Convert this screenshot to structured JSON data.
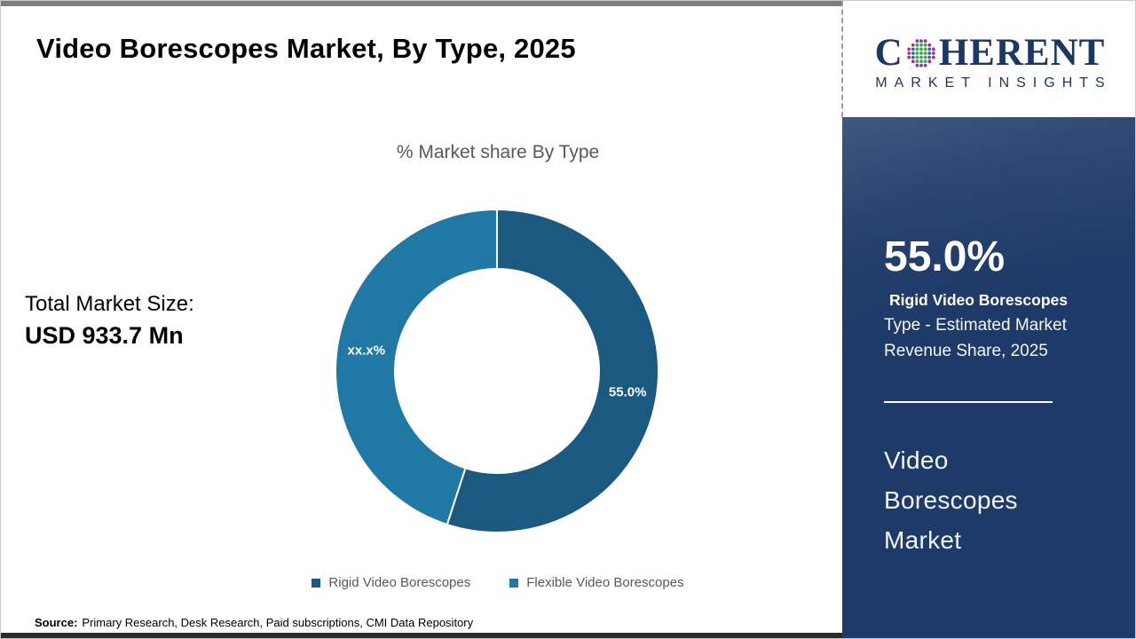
{
  "header": {
    "title": "Video Borescopes Market, By Type, 2025"
  },
  "logo": {
    "word_left": "C",
    "word_right": "HERENT",
    "subtitle": "MARKET INSIGHTS",
    "globe_icon": "dotted-globe",
    "colors": {
      "green": "#3FA549",
      "blue": "#2B6CA3",
      "magenta": "#C32286"
    }
  },
  "chart_data": {
    "type": "pie",
    "donut": true,
    "title": "% Market share By Type",
    "legend_position": "bottom",
    "slices": [
      {
        "label": "Rigid Video Borescopes",
        "value": 55.0,
        "display": "55.0%",
        "color": "#1A5A80"
      },
      {
        "label": "Flexible Video Borescopes",
        "value": 45.0,
        "display": "xx.x%",
        "color": "#2079A4"
      }
    ]
  },
  "left_panel": {
    "total_label": "Total Market Size:",
    "total_value": "USD 933.7 Mn"
  },
  "sidebar": {
    "stat_value": "55.0%",
    "stat_bold": "Rigid Video Borescopes",
    "stat_line2": "Type - Estimated Market",
    "stat_line3": "Revenue Share, 2025",
    "market_name": "Video Borescopes Market"
  },
  "footer": {
    "source_label": "Source:",
    "source_text": "Primary Research, Desk Research, Paid subscriptions, CMI Data Repository"
  },
  "colors": {
    "topbar": "#7F7F7F",
    "bottombar": "#2B2B2B",
    "sidebar_bg": "#1E3A68",
    "navy": "#1D3765",
    "text_gray": "#595959"
  }
}
